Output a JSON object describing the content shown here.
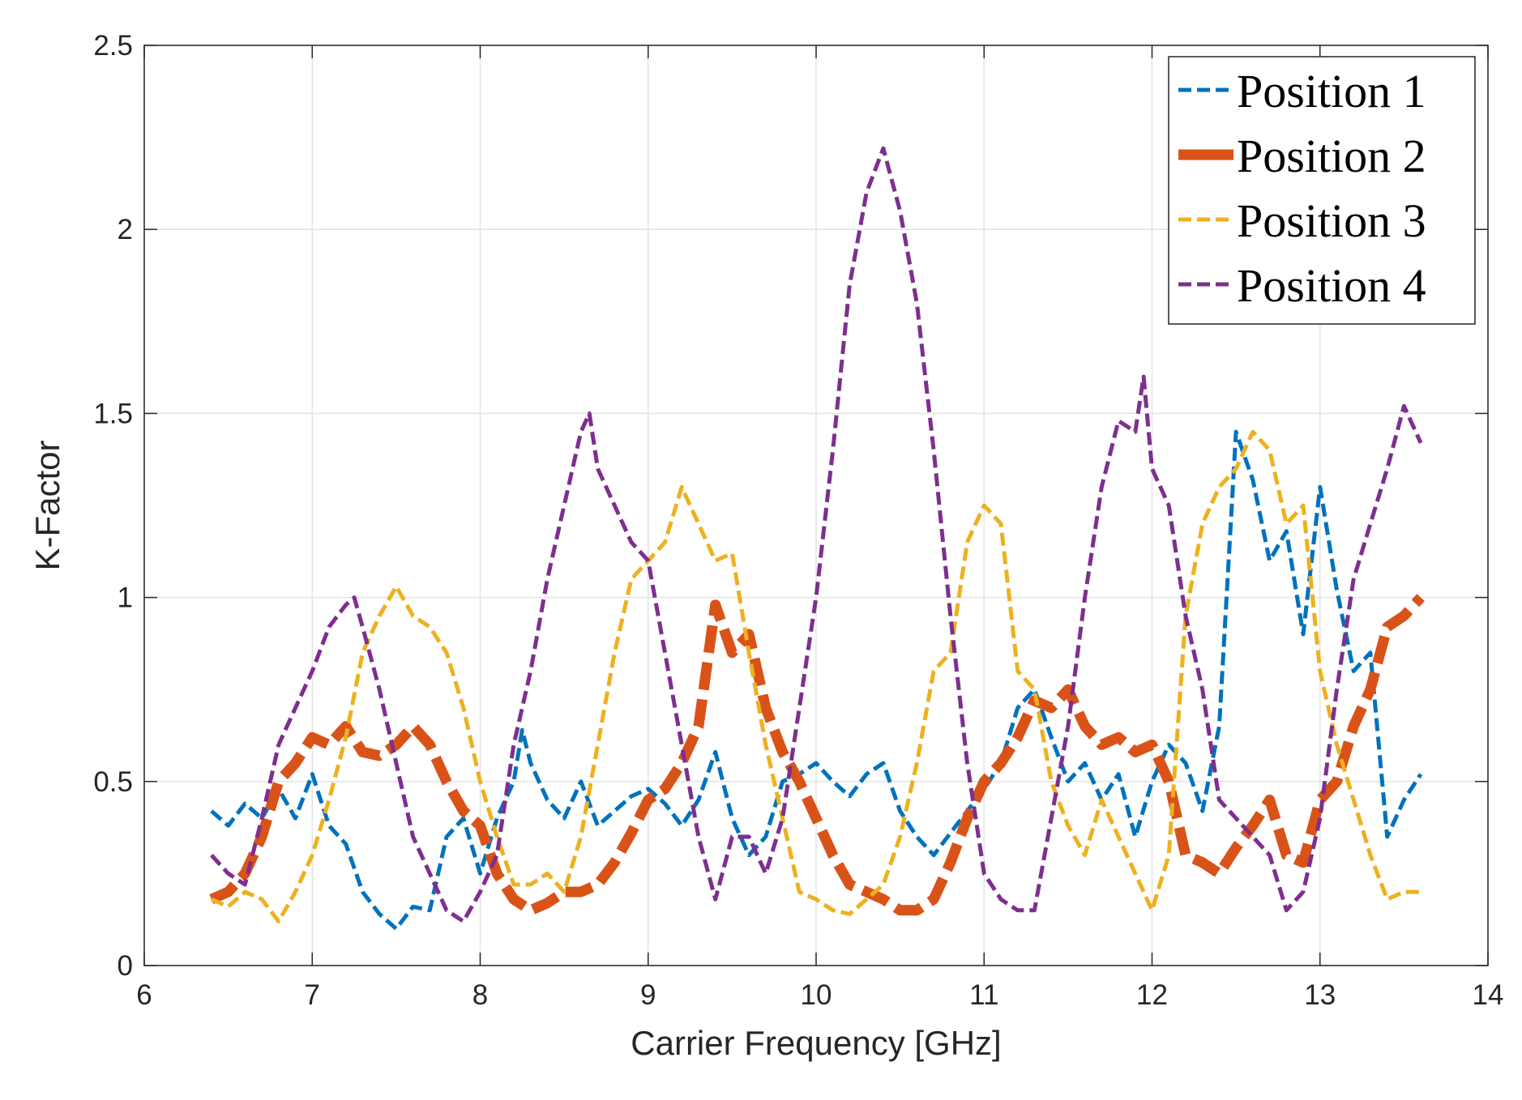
{
  "chart_data": {
    "type": "line",
    "title": "",
    "xlabel": "Carrier Frequency [GHz]",
    "ylabel": "K-Factor",
    "xlim": [
      6,
      14
    ],
    "ylim": [
      0,
      2.5
    ],
    "xticks": [
      6,
      7,
      8,
      9,
      10,
      11,
      12,
      13,
      14
    ],
    "yticks": [
      0,
      0.5,
      1,
      1.5,
      2,
      2.5
    ],
    "xtick_labels": [
      "6",
      "7",
      "8",
      "9",
      "10",
      "11",
      "12",
      "13",
      "14"
    ],
    "ytick_labels": [
      "0",
      "0.5",
      "1",
      "1.5",
      "2",
      "2.5"
    ],
    "grid": true,
    "legend_position": "top-right",
    "series": [
      {
        "name": "Position 1",
        "color": "#0072BD",
        "style": "dashed",
        "width": "thin",
        "x": [
          6.4,
          6.5,
          6.6,
          6.7,
          6.8,
          6.9,
          7.0,
          7.1,
          7.2,
          7.3,
          7.4,
          7.5,
          7.6,
          7.7,
          7.8,
          7.9,
          8.0,
          8.1,
          8.2,
          8.25,
          8.3,
          8.4,
          8.5,
          8.6,
          8.7,
          8.8,
          8.9,
          9.0,
          9.1,
          9.2,
          9.3,
          9.4,
          9.5,
          9.6,
          9.7,
          9.8,
          9.9,
          10.0,
          10.1,
          10.2,
          10.3,
          10.4,
          10.5,
          10.6,
          10.7,
          10.8,
          10.9,
          11.0,
          11.1,
          11.2,
          11.3,
          11.4,
          11.5,
          11.6,
          11.7,
          11.8,
          11.9,
          12.0,
          12.1,
          12.2,
          12.3,
          12.4,
          12.5,
          12.6,
          12.7,
          12.8,
          12.9,
          13.0,
          13.1,
          13.2,
          13.3,
          13.4,
          13.5,
          13.6
        ],
        "values": [
          0.42,
          0.38,
          0.44,
          0.4,
          0.48,
          0.4,
          0.52,
          0.38,
          0.33,
          0.2,
          0.14,
          0.1,
          0.16,
          0.15,
          0.35,
          0.4,
          0.25,
          0.4,
          0.5,
          0.64,
          0.55,
          0.45,
          0.4,
          0.5,
          0.38,
          0.42,
          0.46,
          0.48,
          0.44,
          0.38,
          0.45,
          0.58,
          0.4,
          0.3,
          0.35,
          0.5,
          0.52,
          0.55,
          0.5,
          0.46,
          0.52,
          0.55,
          0.42,
          0.35,
          0.3,
          0.36,
          0.42,
          0.48,
          0.55,
          0.7,
          0.75,
          0.62,
          0.5,
          0.55,
          0.45,
          0.52,
          0.35,
          0.5,
          0.6,
          0.55,
          0.42,
          0.65,
          1.45,
          1.32,
          1.1,
          1.18,
          0.9,
          1.3,
          1.02,
          0.8,
          0.85,
          0.35,
          0.45,
          0.52
        ]
      },
      {
        "name": "Position 2",
        "color": "#D95319",
        "style": "dashed",
        "width": "thick",
        "x": [
          6.4,
          6.5,
          6.6,
          6.7,
          6.8,
          6.9,
          7.0,
          7.1,
          7.2,
          7.3,
          7.4,
          7.5,
          7.6,
          7.7,
          7.8,
          7.9,
          8.0,
          8.1,
          8.2,
          8.3,
          8.4,
          8.5,
          8.6,
          8.7,
          8.8,
          8.9,
          9.0,
          9.1,
          9.2,
          9.3,
          9.4,
          9.5,
          9.6,
          9.7,
          9.8,
          9.9,
          10.0,
          10.1,
          10.2,
          10.3,
          10.4,
          10.5,
          10.6,
          10.7,
          10.8,
          10.9,
          11.0,
          11.1,
          11.2,
          11.3,
          11.4,
          11.5,
          11.6,
          11.7,
          11.8,
          11.9,
          12.0,
          12.1,
          12.2,
          12.3,
          12.4,
          12.5,
          12.6,
          12.7,
          12.8,
          12.9,
          13.0,
          13.1,
          13.2,
          13.3,
          13.4,
          13.5,
          13.6
        ],
        "values": [
          0.18,
          0.2,
          0.25,
          0.35,
          0.5,
          0.55,
          0.62,
          0.6,
          0.65,
          0.58,
          0.57,
          0.6,
          0.65,
          0.6,
          0.5,
          0.42,
          0.38,
          0.25,
          0.18,
          0.15,
          0.17,
          0.2,
          0.2,
          0.22,
          0.28,
          0.36,
          0.45,
          0.48,
          0.55,
          0.65,
          0.98,
          0.85,
          0.9,
          0.7,
          0.58,
          0.5,
          0.4,
          0.3,
          0.22,
          0.2,
          0.18,
          0.15,
          0.15,
          0.18,
          0.28,
          0.4,
          0.5,
          0.55,
          0.62,
          0.72,
          0.7,
          0.75,
          0.65,
          0.6,
          0.62,
          0.58,
          0.6,
          0.5,
          0.3,
          0.28,
          0.25,
          0.32,
          0.38,
          0.45,
          0.3,
          0.28,
          0.45,
          0.5,
          0.65,
          0.75,
          0.92,
          0.95,
          1.0
        ]
      },
      {
        "name": "Position 3",
        "color": "#EDB120",
        "style": "dashed",
        "width": "thin",
        "x": [
          6.4,
          6.5,
          6.6,
          6.7,
          6.8,
          6.9,
          7.0,
          7.1,
          7.2,
          7.3,
          7.4,
          7.5,
          7.6,
          7.7,
          7.8,
          7.9,
          8.0,
          8.1,
          8.2,
          8.3,
          8.4,
          8.5,
          8.6,
          8.7,
          8.8,
          8.9,
          9.0,
          9.1,
          9.2,
          9.3,
          9.4,
          9.5,
          9.6,
          9.7,
          9.8,
          9.9,
          10.0,
          10.1,
          10.2,
          10.3,
          10.4,
          10.5,
          10.6,
          10.7,
          10.8,
          10.9,
          11.0,
          11.1,
          11.2,
          11.3,
          11.4,
          11.5,
          11.6,
          11.7,
          11.8,
          11.9,
          12.0,
          12.1,
          12.2,
          12.3,
          12.4,
          12.5,
          12.6,
          12.7,
          12.8,
          12.9,
          13.0,
          13.1,
          13.2,
          13.3,
          13.4,
          13.5,
          13.6
        ],
        "values": [
          0.18,
          0.16,
          0.2,
          0.18,
          0.12,
          0.2,
          0.3,
          0.45,
          0.62,
          0.85,
          0.95,
          1.03,
          0.95,
          0.92,
          0.85,
          0.7,
          0.5,
          0.35,
          0.22,
          0.22,
          0.25,
          0.2,
          0.35,
          0.6,
          0.85,
          1.05,
          1.1,
          1.15,
          1.3,
          1.2,
          1.1,
          1.12,
          0.85,
          0.6,
          0.4,
          0.2,
          0.18,
          0.15,
          0.14,
          0.18,
          0.22,
          0.35,
          0.55,
          0.8,
          0.85,
          1.15,
          1.25,
          1.2,
          0.8,
          0.75,
          0.5,
          0.38,
          0.3,
          0.45,
          0.35,
          0.25,
          0.15,
          0.3,
          0.95,
          1.2,
          1.3,
          1.35,
          1.45,
          1.4,
          1.2,
          1.25,
          0.8,
          0.6,
          0.45,
          0.3,
          0.18,
          0.2,
          0.2
        ]
      },
      {
        "name": "Position 4",
        "color": "#7E2F8E",
        "style": "dashed",
        "width": "thin",
        "x": [
          6.4,
          6.5,
          6.6,
          6.7,
          6.8,
          6.9,
          7.0,
          7.1,
          7.2,
          7.25,
          7.3,
          7.4,
          7.5,
          7.6,
          7.7,
          7.8,
          7.9,
          8.0,
          8.1,
          8.2,
          8.3,
          8.4,
          8.5,
          8.6,
          8.65,
          8.7,
          8.8,
          8.9,
          9.0,
          9.1,
          9.2,
          9.3,
          9.4,
          9.5,
          9.6,
          9.7,
          9.8,
          9.9,
          10.0,
          10.1,
          10.2,
          10.3,
          10.4,
          10.5,
          10.6,
          10.7,
          10.8,
          10.9,
          11.0,
          11.1,
          11.2,
          11.3,
          11.4,
          11.5,
          11.6,
          11.7,
          11.8,
          11.9,
          11.95,
          12.0,
          12.1,
          12.2,
          12.3,
          12.4,
          12.5,
          12.6,
          12.7,
          12.8,
          12.9,
          13.0,
          13.1,
          13.2,
          13.3,
          13.4,
          13.5,
          13.6
        ],
        "values": [
          0.3,
          0.25,
          0.22,
          0.4,
          0.6,
          0.7,
          0.8,
          0.92,
          0.98,
          1.0,
          0.92,
          0.75,
          0.55,
          0.35,
          0.25,
          0.15,
          0.12,
          0.2,
          0.3,
          0.6,
          0.8,
          1.05,
          1.25,
          1.45,
          1.5,
          1.35,
          1.25,
          1.15,
          1.1,
          0.85,
          0.6,
          0.35,
          0.18,
          0.35,
          0.35,
          0.25,
          0.4,
          0.7,
          1.0,
          1.4,
          1.85,
          2.1,
          2.22,
          2.05,
          1.8,
          1.4,
          0.95,
          0.55,
          0.25,
          0.18,
          0.15,
          0.15,
          0.4,
          0.65,
          1.0,
          1.3,
          1.48,
          1.45,
          1.6,
          1.35,
          1.25,
          0.95,
          0.75,
          0.45,
          0.4,
          0.35,
          0.3,
          0.15,
          0.2,
          0.4,
          0.75,
          1.05,
          1.2,
          1.35,
          1.52,
          1.42
        ]
      }
    ]
  }
}
